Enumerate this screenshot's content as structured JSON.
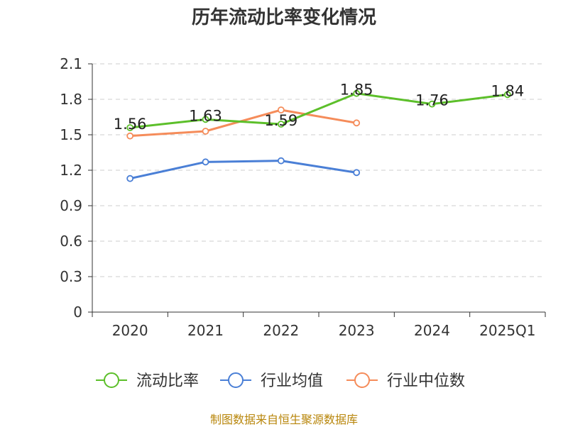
{
  "title": "历年流动比率变化情况",
  "source": "制图数据来自恒生聚源数据库",
  "colors": {
    "grid": "#cccccc",
    "axis": "#333333",
    "text": "#333333"
  },
  "chart_data": {
    "type": "line",
    "categories": [
      "2020",
      "2021",
      "2022",
      "2023",
      "2024",
      "2025Q1"
    ],
    "ylim": [
      0,
      2.1
    ],
    "yticks": [
      "0",
      "0.3",
      "0.6",
      "0.9",
      "1.2",
      "1.5",
      "1.8",
      "2.1"
    ],
    "grid": true,
    "legend_position": "bottom",
    "series": [
      {
        "name": "流动比率",
        "color": "#5cbf2a",
        "values": [
          1.56,
          1.63,
          1.59,
          1.85,
          1.76,
          1.84
        ],
        "labels": [
          "1.56",
          "1.63",
          "1.59",
          "1.85",
          "1.76",
          "1.84"
        ]
      },
      {
        "name": "行业均值",
        "color": "#4a7fd6",
        "values": [
          1.13,
          1.27,
          1.28,
          1.18,
          null,
          null
        ]
      },
      {
        "name": "行业中位数",
        "color": "#f58c5a",
        "values": [
          1.49,
          1.53,
          1.71,
          1.6,
          null,
          null
        ]
      }
    ]
  }
}
